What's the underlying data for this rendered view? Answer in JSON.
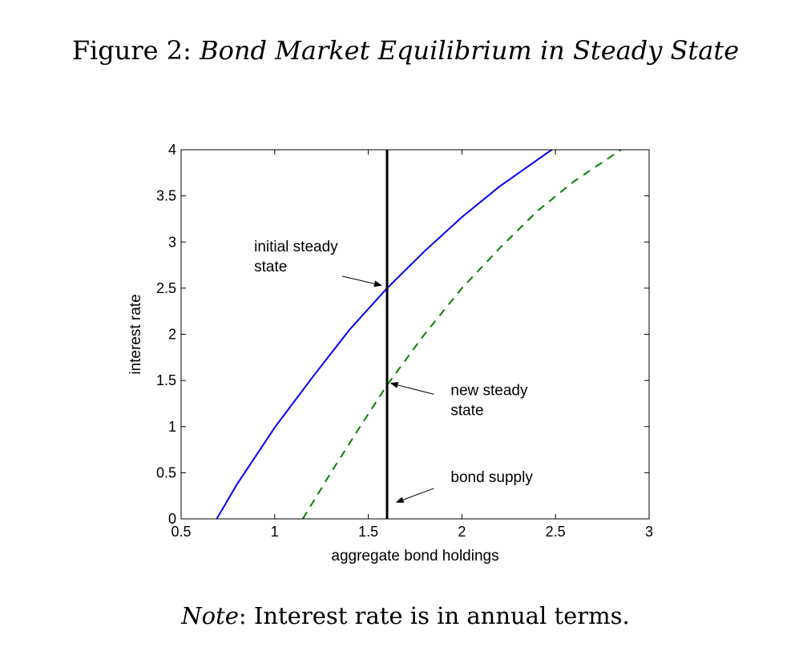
{
  "figure": {
    "number_label": "Figure 2:",
    "title": "Bond Market Equilibrium in Steady State",
    "note_label": "Note",
    "note_text": ": Interest rate is in annual terms."
  },
  "chart_data": {
    "type": "line",
    "xlabel": "aggregate bond holdings",
    "ylabel": "interest rate",
    "xlim": [
      0.5,
      3
    ],
    "ylim": [
      0,
      4
    ],
    "xticks": [
      0.5,
      1,
      1.5,
      2,
      2.5,
      3
    ],
    "yticks": [
      0,
      0.5,
      1,
      1.5,
      2,
      2.5,
      3,
      3.5,
      4
    ],
    "xtick_labels": [
      "0.5",
      "1",
      "1.5",
      "2",
      "2.5",
      "3"
    ],
    "ytick_labels": [
      "0",
      "0.5",
      "1",
      "1.5",
      "2",
      "2.5",
      "3",
      "3.5",
      "4"
    ],
    "grid": false,
    "series": [
      {
        "style": "solid",
        "color": "#0000ff",
        "x": [
          0.69,
          0.8,
          1.0,
          1.2,
          1.4,
          1.6,
          1.8,
          2.0,
          2.2,
          2.48
        ],
        "y": [
          0.0,
          0.38,
          0.99,
          1.53,
          2.05,
          2.5,
          2.9,
          3.27,
          3.6,
          4.0
        ]
      },
      {
        "style": "dashed",
        "color": "#007f00",
        "x": [
          1.15,
          1.3,
          1.45,
          1.6,
          1.8,
          2.0,
          2.2,
          2.4,
          2.6,
          2.85
        ],
        "y": [
          0.0,
          0.5,
          0.98,
          1.45,
          2.0,
          2.5,
          2.93,
          3.33,
          3.66,
          4.0
        ]
      },
      {
        "style": "solid",
        "color": "#000000",
        "x": [
          1.6,
          1.6
        ],
        "y": [
          0,
          4
        ]
      }
    ],
    "annotations": [
      {
        "lines": [
          "initial steady",
          "state"
        ],
        "x": 0.89,
        "y": 2.9,
        "arrow_from": [
          1.36,
          2.63
        ],
        "arrow_to": [
          1.57,
          2.53
        ]
      },
      {
        "lines": [
          "new steady",
          "state"
        ],
        "x": 1.94,
        "y": 1.34,
        "arrow_from": [
          1.85,
          1.35
        ],
        "arrow_to": [
          1.62,
          1.47
        ]
      },
      {
        "lines": [
          "bond supply"
        ],
        "x": 1.94,
        "y": 0.4,
        "arrow_from": [
          1.85,
          0.33
        ],
        "arrow_to": [
          1.65,
          0.18
        ]
      }
    ]
  }
}
